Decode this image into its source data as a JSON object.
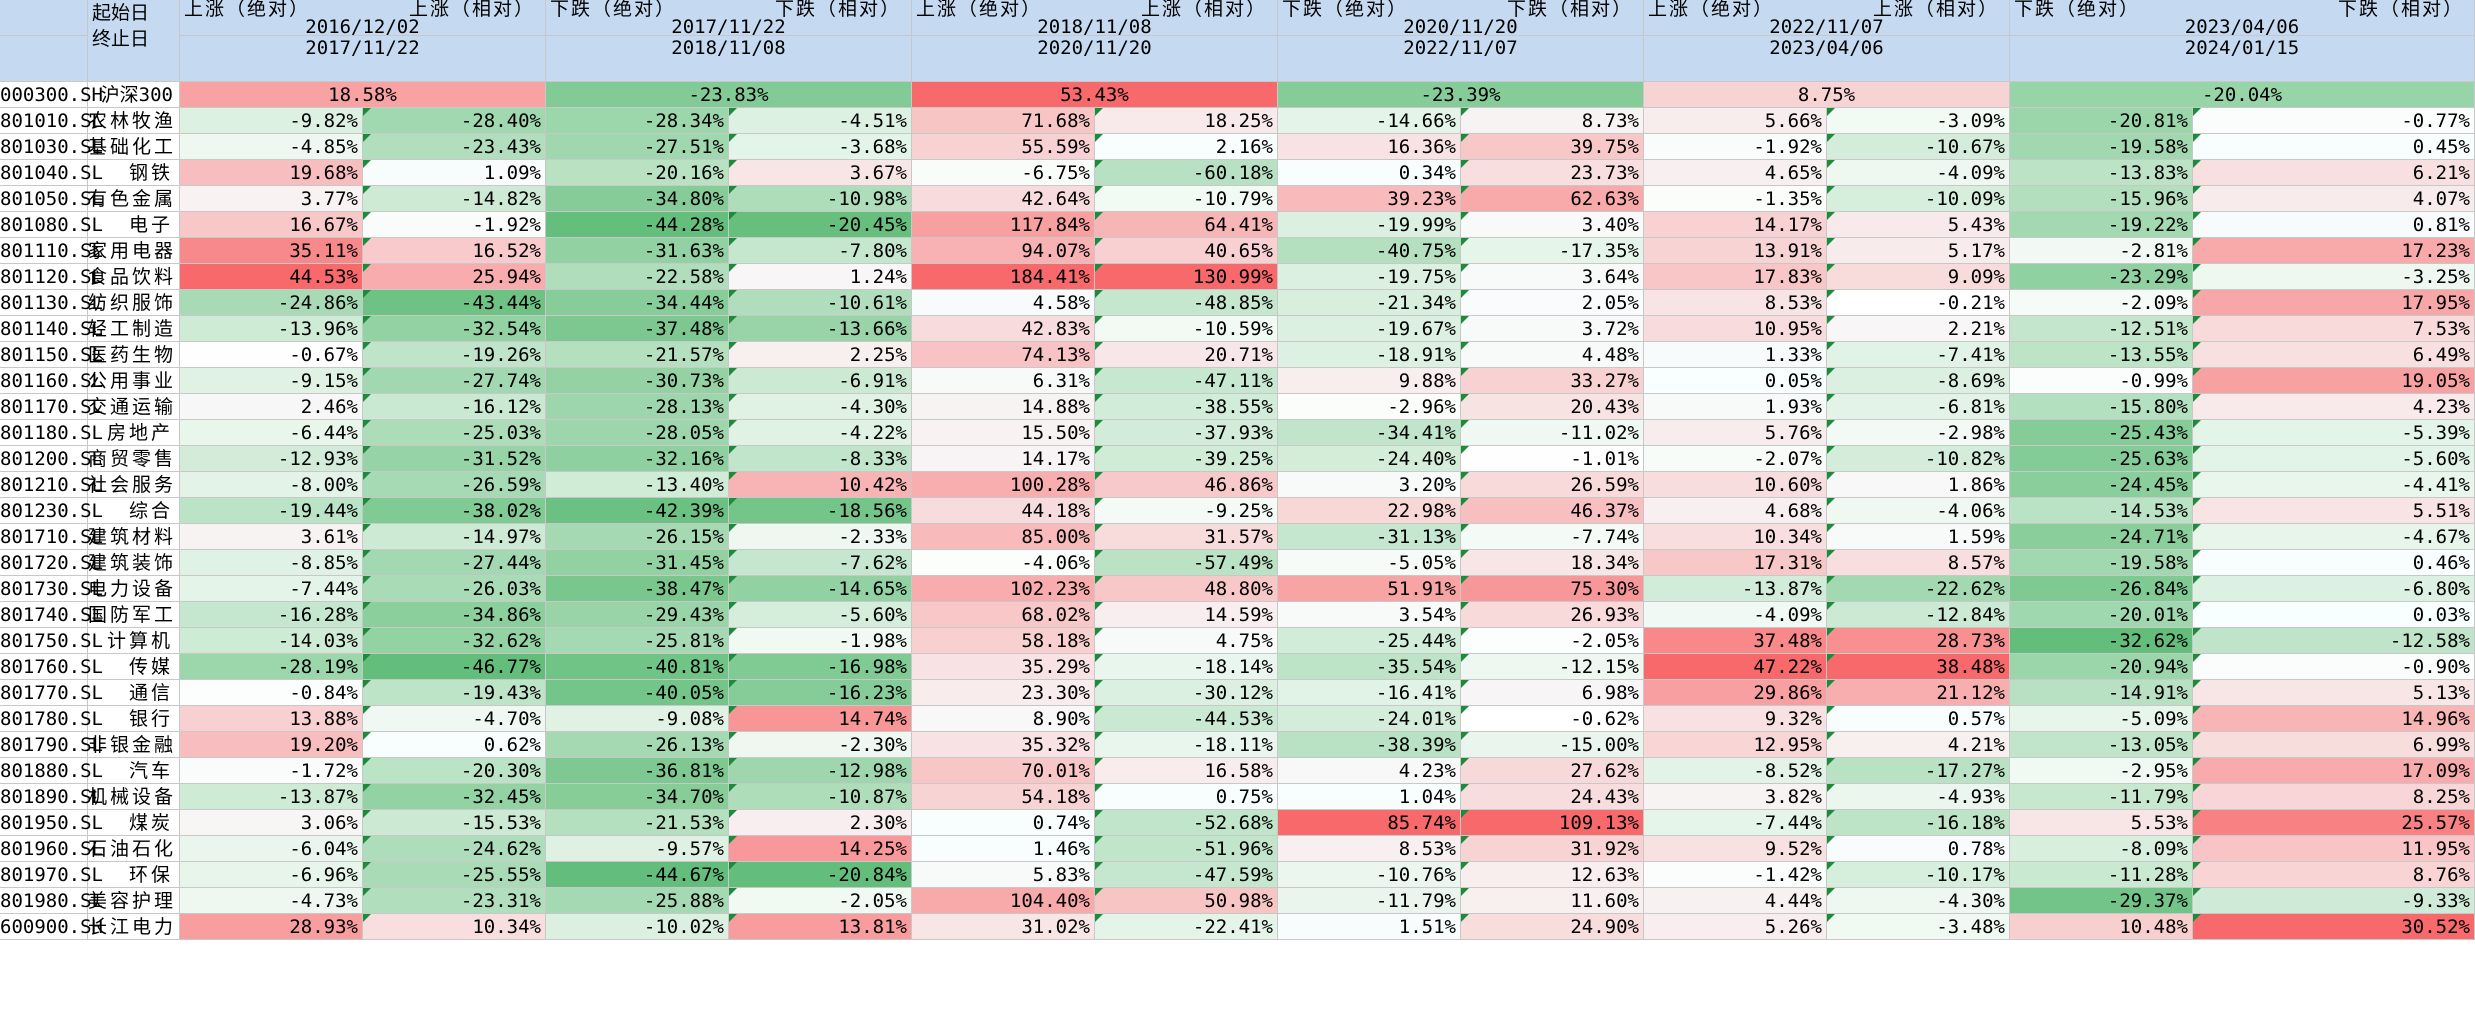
{
  "header": {
    "label_start": "起始日",
    "label_end": "终止日",
    "periods": [
      {
        "left": "上涨（绝对）",
        "right": "上涨（相对）",
        "start": "2016/12/02",
        "end": "2017/11/22"
      },
      {
        "left": "下跌（绝对）",
        "right": "下跌（相对）",
        "start": "2017/11/22",
        "end": "2018/11/08"
      },
      {
        "left": "上涨（绝对）",
        "right": "上涨（相对）",
        "start": "2018/11/08",
        "end": "2020/11/20"
      },
      {
        "left": "下跌（绝对）",
        "right": "下跌（相对）",
        "start": "2020/11/20",
        "end": "2022/11/07"
      },
      {
        "left": "上涨（绝对）",
        "right": "上涨（相对）",
        "start": "2022/11/07",
        "end": "2023/04/06"
      },
      {
        "left": "下跌（绝对）",
        "right": "下跌（相对）",
        "start": "2023/04/06",
        "end": "2024/01/15"
      }
    ]
  },
  "benchmark": {
    "code": "000300.SH",
    "name": "沪深300",
    "values": [
      "18.58%",
      "-23.83%",
      "53.43%",
      "-23.39%",
      "8.75%",
      "-20.04%"
    ]
  },
  "rows": [
    {
      "code": "801010.SL",
      "name": "农林牧渔",
      "values": [
        "-9.82%",
        "-28.40%",
        "-28.34%",
        "-4.51%",
        "71.68%",
        "18.25%",
        "-14.66%",
        "8.73%",
        "5.66%",
        "-3.09%",
        "-20.81%",
        "-0.77%"
      ]
    },
    {
      "code": "801030.SL",
      "name": "基础化工",
      "values": [
        "-4.85%",
        "-23.43%",
        "-27.51%",
        "-3.68%",
        "55.59%",
        "2.16%",
        "16.36%",
        "39.75%",
        "-1.92%",
        "-10.67%",
        "-19.58%",
        "0.45%"
      ]
    },
    {
      "code": "801040.SL",
      "name": "钢铁",
      "values": [
        "19.68%",
        "1.09%",
        "-20.16%",
        "3.67%",
        "-6.75%",
        "-60.18%",
        "0.34%",
        "23.73%",
        "4.65%",
        "-4.09%",
        "-13.83%",
        "6.21%"
      ]
    },
    {
      "code": "801050.SL",
      "name": "有色金属",
      "values": [
        "3.77%",
        "-14.82%",
        "-34.80%",
        "-10.98%",
        "42.64%",
        "-10.79%",
        "39.23%",
        "62.63%",
        "-1.35%",
        "-10.09%",
        "-15.96%",
        "4.07%"
      ]
    },
    {
      "code": "801080.SL",
      "name": "电子",
      "values": [
        "16.67%",
        "-1.92%",
        "-44.28%",
        "-20.45%",
        "117.84%",
        "64.41%",
        "-19.99%",
        "3.40%",
        "14.17%",
        "5.43%",
        "-19.22%",
        "0.81%"
      ]
    },
    {
      "code": "801110.SL",
      "name": "家用电器",
      "values": [
        "35.11%",
        "16.52%",
        "-31.63%",
        "-7.80%",
        "94.07%",
        "40.65%",
        "-40.75%",
        "-17.35%",
        "13.91%",
        "5.17%",
        "-2.81%",
        "17.23%"
      ]
    },
    {
      "code": "801120.SL",
      "name": "食品饮料",
      "values": [
        "44.53%",
        "25.94%",
        "-22.58%",
        "1.24%",
        "184.41%",
        "130.99%",
        "-19.75%",
        "3.64%",
        "17.83%",
        "9.09%",
        "-23.29%",
        "-3.25%"
      ]
    },
    {
      "code": "801130.SL",
      "name": "纺织服饰",
      "values": [
        "-24.86%",
        "-43.44%",
        "-34.44%",
        "-10.61%",
        "4.58%",
        "-48.85%",
        "-21.34%",
        "2.05%",
        "8.53%",
        "-0.21%",
        "-2.09%",
        "17.95%"
      ]
    },
    {
      "code": "801140.SL",
      "name": "轻工制造",
      "values": [
        "-13.96%",
        "-32.54%",
        "-37.48%",
        "-13.66%",
        "42.83%",
        "-10.59%",
        "-19.67%",
        "3.72%",
        "10.95%",
        "2.21%",
        "-12.51%",
        "7.53%"
      ]
    },
    {
      "code": "801150.SL",
      "name": "医药生物",
      "values": [
        "-0.67%",
        "-19.26%",
        "-21.57%",
        "2.25%",
        "74.13%",
        "20.71%",
        "-18.91%",
        "4.48%",
        "1.33%",
        "-7.41%",
        "-13.55%",
        "6.49%"
      ]
    },
    {
      "code": "801160.SL",
      "name": "公用事业",
      "values": [
        "-9.15%",
        "-27.74%",
        "-30.73%",
        "-6.91%",
        "6.31%",
        "-47.11%",
        "9.88%",
        "33.27%",
        "0.05%",
        "-8.69%",
        "-0.99%",
        "19.05%"
      ]
    },
    {
      "code": "801170.SL",
      "name": "交通运输",
      "values": [
        "2.46%",
        "-16.12%",
        "-28.13%",
        "-4.30%",
        "14.88%",
        "-38.55%",
        "-2.96%",
        "20.43%",
        "1.93%",
        "-6.81%",
        "-15.80%",
        "4.23%"
      ]
    },
    {
      "code": "801180.SL",
      "name": "房地产",
      "values": [
        "-6.44%",
        "-25.03%",
        "-28.05%",
        "-4.22%",
        "15.50%",
        "-37.93%",
        "-34.41%",
        "-11.02%",
        "5.76%",
        "-2.98%",
        "-25.43%",
        "-5.39%"
      ]
    },
    {
      "code": "801200.SL",
      "name": "商贸零售",
      "values": [
        "-12.93%",
        "-31.52%",
        "-32.16%",
        "-8.33%",
        "14.17%",
        "-39.25%",
        "-24.40%",
        "-1.01%",
        "-2.07%",
        "-10.82%",
        "-25.63%",
        "-5.60%"
      ]
    },
    {
      "code": "801210.SL",
      "name": "社会服务",
      "values": [
        "-8.00%",
        "-26.59%",
        "-13.40%",
        "10.42%",
        "100.28%",
        "46.86%",
        "3.20%",
        "26.59%",
        "10.60%",
        "1.86%",
        "-24.45%",
        "-4.41%"
      ]
    },
    {
      "code": "801230.SL",
      "name": "综合",
      "values": [
        "-19.44%",
        "-38.02%",
        "-42.39%",
        "-18.56%",
        "44.18%",
        "-9.25%",
        "22.98%",
        "46.37%",
        "4.68%",
        "-4.06%",
        "-14.53%",
        "5.51%"
      ]
    },
    {
      "code": "801710.SL",
      "name": "建筑材料",
      "values": [
        "3.61%",
        "-14.97%",
        "-26.15%",
        "-2.33%",
        "85.00%",
        "31.57%",
        "-31.13%",
        "-7.74%",
        "10.34%",
        "1.59%",
        "-24.71%",
        "-4.67%"
      ]
    },
    {
      "code": "801720.SL",
      "name": "建筑装饰",
      "values": [
        "-8.85%",
        "-27.44%",
        "-31.45%",
        "-7.62%",
        "-4.06%",
        "-57.49%",
        "-5.05%",
        "18.34%",
        "17.31%",
        "8.57%",
        "-19.58%",
        "0.46%"
      ]
    },
    {
      "code": "801730.SL",
      "name": "电力设备",
      "values": [
        "-7.44%",
        "-26.03%",
        "-38.47%",
        "-14.65%",
        "102.23%",
        "48.80%",
        "51.91%",
        "75.30%",
        "-13.87%",
        "-22.62%",
        "-26.84%",
        "-6.80%"
      ]
    },
    {
      "code": "801740.SL",
      "name": "国防军工",
      "values": [
        "-16.28%",
        "-34.86%",
        "-29.43%",
        "-5.60%",
        "68.02%",
        "14.59%",
        "3.54%",
        "26.93%",
        "-4.09%",
        "-12.84%",
        "-20.01%",
        "0.03%"
      ]
    },
    {
      "code": "801750.SL",
      "name": "计算机",
      "values": [
        "-14.03%",
        "-32.62%",
        "-25.81%",
        "-1.98%",
        "58.18%",
        "4.75%",
        "-25.44%",
        "-2.05%",
        "37.48%",
        "28.73%",
        "-32.62%",
        "-12.58%"
      ]
    },
    {
      "code": "801760.SL",
      "name": "传媒",
      "values": [
        "-28.19%",
        "-46.77%",
        "-40.81%",
        "-16.98%",
        "35.29%",
        "-18.14%",
        "-35.54%",
        "-12.15%",
        "47.22%",
        "38.48%",
        "-20.94%",
        "-0.90%"
      ]
    },
    {
      "code": "801770.SL",
      "name": "通信",
      "values": [
        "-0.84%",
        "-19.43%",
        "-40.05%",
        "-16.23%",
        "23.30%",
        "-30.12%",
        "-16.41%",
        "6.98%",
        "29.86%",
        "21.12%",
        "-14.91%",
        "5.13%"
      ]
    },
    {
      "code": "801780.SL",
      "name": "银行",
      "values": [
        "13.88%",
        "-4.70%",
        "-9.08%",
        "14.74%",
        "8.90%",
        "-44.53%",
        "-24.01%",
        "-0.62%",
        "9.32%",
        "0.57%",
        "-5.09%",
        "14.96%"
      ]
    },
    {
      "code": "801790.SL",
      "name": "非银金融",
      "values": [
        "19.20%",
        "0.62%",
        "-26.13%",
        "-2.30%",
        "35.32%",
        "-18.11%",
        "-38.39%",
        "-15.00%",
        "12.95%",
        "4.21%",
        "-13.05%",
        "6.99%"
      ]
    },
    {
      "code": "801880.SL",
      "name": "汽车",
      "values": [
        "-1.72%",
        "-20.30%",
        "-36.81%",
        "-12.98%",
        "70.01%",
        "16.58%",
        "4.23%",
        "27.62%",
        "-8.52%",
        "-17.27%",
        "-2.95%",
        "17.09%"
      ]
    },
    {
      "code": "801890.SL",
      "name": "机械设备",
      "values": [
        "-13.87%",
        "-32.45%",
        "-34.70%",
        "-10.87%",
        "54.18%",
        "0.75%",
        "1.04%",
        "24.43%",
        "3.82%",
        "-4.93%",
        "-11.79%",
        "8.25%"
      ]
    },
    {
      "code": "801950.SL",
      "name": "煤炭",
      "values": [
        "3.06%",
        "-15.53%",
        "-21.53%",
        "2.30%",
        "0.74%",
        "-52.68%",
        "85.74%",
        "109.13%",
        "-7.44%",
        "-16.18%",
        "5.53%",
        "25.57%"
      ]
    },
    {
      "code": "801960.SL",
      "name": "石油石化",
      "values": [
        "-6.04%",
        "-24.62%",
        "-9.57%",
        "14.25%",
        "1.46%",
        "-51.96%",
        "8.53%",
        "31.92%",
        "9.52%",
        "0.78%",
        "-8.09%",
        "11.95%"
      ]
    },
    {
      "code": "801970.SL",
      "name": "环保",
      "values": [
        "-6.96%",
        "-25.55%",
        "-44.67%",
        "-20.84%",
        "5.83%",
        "-47.59%",
        "-10.76%",
        "12.63%",
        "-1.42%",
        "-10.17%",
        "-11.28%",
        "8.76%"
      ]
    },
    {
      "code": "801980.SL",
      "name": "美容护理",
      "values": [
        "-4.73%",
        "-23.31%",
        "-25.88%",
        "-2.05%",
        "104.40%",
        "50.98%",
        "-11.79%",
        "11.60%",
        "4.44%",
        "-4.30%",
        "-29.37%",
        "-9.33%"
      ]
    },
    {
      "code": "600900.SH",
      "name": "长江电力",
      "values": [
        "28.93%",
        "10.34%",
        "-10.02%",
        "13.81%",
        "31.02%",
        "-22.41%",
        "1.51%",
        "24.90%",
        "5.26%",
        "-3.48%",
        "10.48%",
        "30.52%"
      ]
    }
  ]
}
